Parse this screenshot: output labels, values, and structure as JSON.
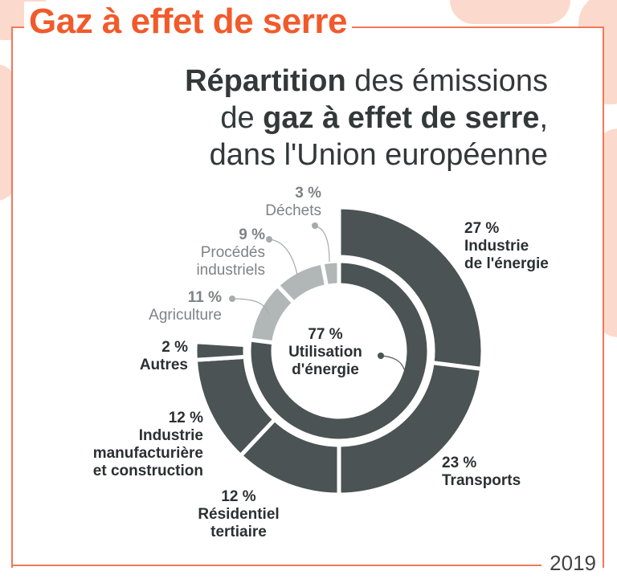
{
  "header": {
    "title": "Gaz à effet de serre"
  },
  "subtitle": {
    "line1_bold": "Répartition",
    "line1_rest": " des émissions",
    "line2_pre": "de ",
    "line2_bold": "gaz à effet de serre",
    "line2_post": ",",
    "line3": "dans l'Union européenne"
  },
  "year": "2019",
  "colors": {
    "accent": "#f15a2b",
    "energy": "#4b5354",
    "other": "#b1b6b7"
  },
  "chart_data": {
    "type": "pie",
    "subtype": "nested-donut",
    "inner_ring": [
      {
        "label": "Utilisation d'énergie",
        "label_line1": "Utilisation",
        "label_line2": "d'énergie",
        "value": 77,
        "pct": "77 %"
      },
      {
        "label": "Agriculture",
        "value": 11,
        "pct": "11 %"
      },
      {
        "label": "Procédés industriels",
        "label_line1": "Procédés",
        "label_line2": "industriels",
        "value": 9,
        "pct": "9 %"
      },
      {
        "label": "Déchets",
        "value": 3,
        "pct": "3 %"
      }
    ],
    "outer_ring": [
      {
        "label": "Industrie de l'énergie",
        "label_line1": "Industrie",
        "label_line2": "de l'énergie",
        "value": 27,
        "pct": "27 %"
      },
      {
        "label": "Transports",
        "value": 23,
        "pct": "23 %"
      },
      {
        "label": "Résidentiel tertiaire",
        "label_line1": "Résidentiel",
        "label_line2": "tertiaire",
        "value": 12,
        "pct": "12 %"
      },
      {
        "label": "Industrie manufacturière et construction",
        "label_line1": "Industrie",
        "label_line2": "manufacturière",
        "label_line3": "et construction",
        "value": 12,
        "pct": "12 %"
      },
      {
        "label": "Autres",
        "value": 2,
        "pct": "2 %"
      }
    ],
    "unit": "%"
  }
}
